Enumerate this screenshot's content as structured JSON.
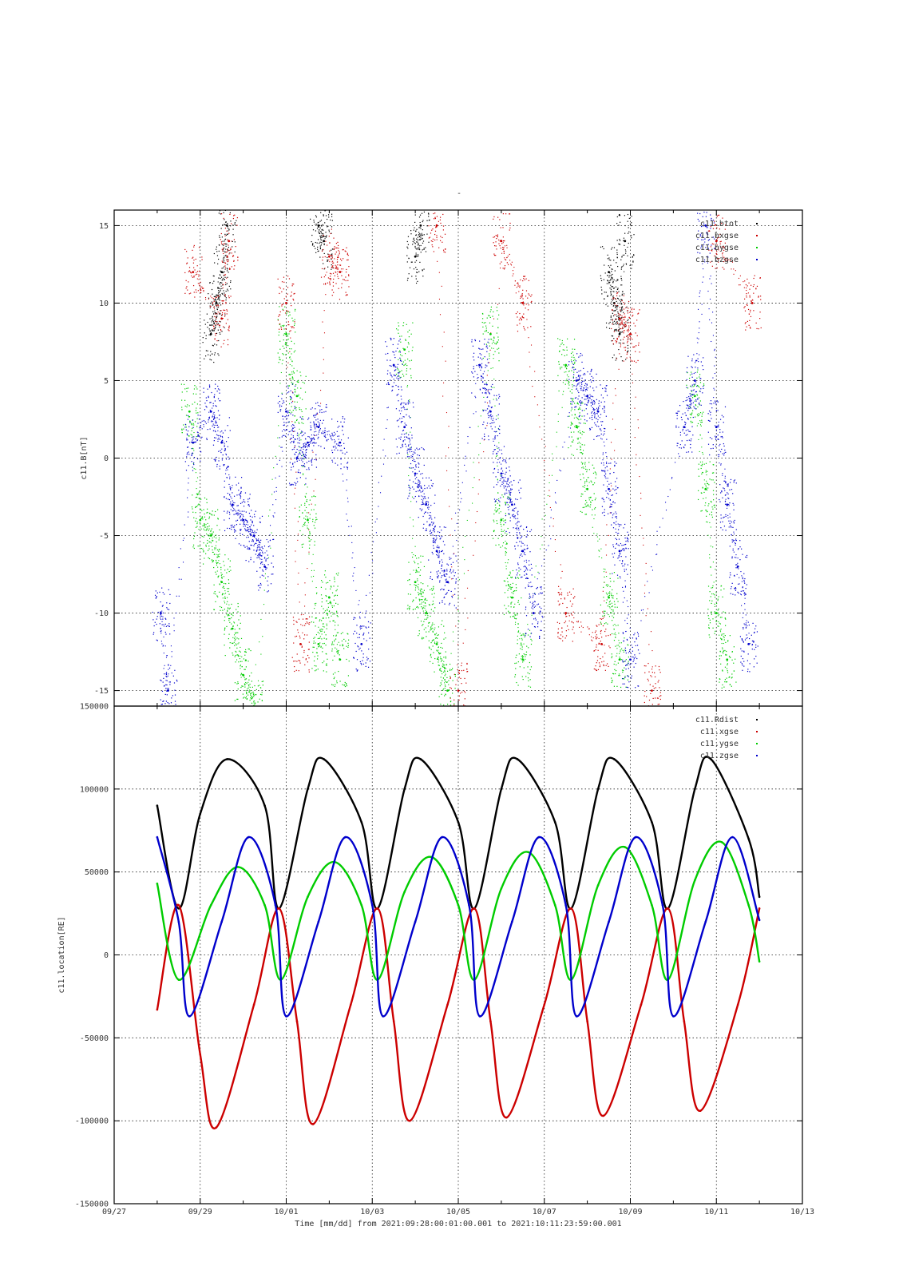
{
  "chart_data": [
    {
      "type": "scatter",
      "title": "-",
      "ylabel": "c11.B[nT]",
      "ylim": [
        -16,
        16
      ],
      "yticks": [
        -15,
        -10,
        -5,
        0,
        5,
        10,
        15
      ],
      "ytick_labels": [
        "-15",
        "-10",
        "-5",
        "0",
        "5",
        "10",
        "15"
      ],
      "legend_position": "top-right",
      "grid": true,
      "series": [
        {
          "name": "c11.btot",
          "color": "#000000",
          "points": [
            [
              "2021-09-29 06:00",
              8
            ],
            [
              "2021-09-29 09:00",
              10
            ],
            [
              "2021-09-29 12:00",
              12
            ],
            [
              "2021-09-29 15:00",
              15
            ],
            [
              "2021-10-01 18:00",
              15
            ],
            [
              "2021-10-01 21:00",
              14
            ],
            [
              "2021-10-04 00:00",
              13
            ],
            [
              "2021-10-04 03:00",
              15
            ],
            [
              "2021-10-08 12:00",
              12
            ],
            [
              "2021-10-08 15:00",
              10
            ],
            [
              "2021-10-08 18:00",
              8
            ],
            [
              "2021-10-08 21:00",
              14
            ]
          ]
        },
        {
          "name": "c11.bxgse",
          "color": "#cc0000",
          "points": [
            [
              "2021-09-28 20:00",
              12
            ],
            [
              "2021-09-29 12:00",
              9
            ],
            [
              "2021-09-29 16:00",
              14
            ],
            [
              "2021-10-01 00:00",
              10
            ],
            [
              "2021-10-01 08:00",
              -12
            ],
            [
              "2021-10-02 00:00",
              13
            ],
            [
              "2021-10-02 06:00",
              12
            ],
            [
              "2021-10-04 12:00",
              15
            ],
            [
              "2021-10-05 00:00",
              -15
            ],
            [
              "2021-10-06 00:00",
              14
            ],
            [
              "2021-10-06 12:00",
              10
            ],
            [
              "2021-10-07 12:00",
              -10
            ],
            [
              "2021-10-08 08:00",
              -12
            ],
            [
              "2021-10-08 18:00",
              9
            ],
            [
              "2021-10-09 00:00",
              8
            ],
            [
              "2021-10-09 12:00",
              -15
            ],
            [
              "2021-10-11 00:00",
              14
            ],
            [
              "2021-10-11 20:00",
              10
            ]
          ]
        },
        {
          "name": "c11.bygse",
          "color": "#00cc00",
          "points": [
            [
              "2021-09-28 18:00",
              3
            ],
            [
              "2021-09-29 00:00",
              -4
            ],
            [
              "2021-09-29 06:00",
              -5
            ],
            [
              "2021-09-29 12:00",
              -8
            ],
            [
              "2021-09-29 18:00",
              -11
            ],
            [
              "2021-09-30 00:00",
              -14
            ],
            [
              "2021-09-30 06:00",
              -16
            ],
            [
              "2021-10-01 00:00",
              8
            ],
            [
              "2021-10-01 06:00",
              4
            ],
            [
              "2021-10-01 12:00",
              -4
            ],
            [
              "2021-10-01 18:00",
              -12
            ],
            [
              "2021-10-02 00:00",
              -9
            ],
            [
              "2021-10-02 06:00",
              -13
            ],
            [
              "2021-10-03 18:00",
              7
            ],
            [
              "2021-10-04 00:00",
              -8
            ],
            [
              "2021-10-04 06:00",
              -10
            ],
            [
              "2021-10-04 12:00",
              -12
            ],
            [
              "2021-10-04 18:00",
              -15
            ],
            [
              "2021-10-05 18:00",
              8
            ],
            [
              "2021-10-06 00:00",
              -4
            ],
            [
              "2021-10-06 06:00",
              -9
            ],
            [
              "2021-10-06 12:00",
              -13
            ],
            [
              "2021-10-07 12:00",
              6
            ],
            [
              "2021-10-07 18:00",
              2
            ],
            [
              "2021-10-08 00:00",
              -2
            ],
            [
              "2021-10-08 12:00",
              -9
            ],
            [
              "2021-10-08 18:00",
              -13
            ],
            [
              "2021-10-10 12:00",
              4
            ],
            [
              "2021-10-10 18:00",
              -2
            ],
            [
              "2021-10-11 00:00",
              -10
            ],
            [
              "2021-10-11 06:00",
              -13
            ]
          ]
        },
        {
          "name": "c11.bzgse",
          "color": "#0000cc",
          "points": [
            [
              "2021-09-28 02:00",
              -10
            ],
            [
              "2021-09-28 06:00",
              -15
            ],
            [
              "2021-09-28 20:00",
              1
            ],
            [
              "2021-09-29 06:00",
              3
            ],
            [
              "2021-09-29 12:00",
              1
            ],
            [
              "2021-09-29 18:00",
              -3
            ],
            [
              "2021-09-30 00:00",
              -4
            ],
            [
              "2021-09-30 06:00",
              -5
            ],
            [
              "2021-09-30 12:00",
              -7
            ],
            [
              "2021-10-01 00:00",
              3
            ],
            [
              "2021-10-01 06:00",
              0
            ],
            [
              "2021-10-01 12:00",
              1
            ],
            [
              "2021-10-01 18:00",
              2
            ],
            [
              "2021-10-02 06:00",
              1
            ],
            [
              "2021-10-02 18:00",
              -12
            ],
            [
              "2021-10-03 12:00",
              6
            ],
            [
              "2021-10-03 18:00",
              2
            ],
            [
              "2021-10-04 00:00",
              -1
            ],
            [
              "2021-10-04 06:00",
              -3
            ],
            [
              "2021-10-04 12:00",
              -6
            ],
            [
              "2021-10-04 18:00",
              -8
            ],
            [
              "2021-10-05 12:00",
              6
            ],
            [
              "2021-10-05 18:00",
              3
            ],
            [
              "2021-10-06 00:00",
              -1
            ],
            [
              "2021-10-06 06:00",
              -3
            ],
            [
              "2021-10-06 12:00",
              -6
            ],
            [
              "2021-10-06 18:00",
              -10
            ],
            [
              "2021-10-07 18:00",
              5
            ],
            [
              "2021-10-08 00:00",
              4
            ],
            [
              "2021-10-08 06:00",
              3
            ],
            [
              "2021-10-08 12:00",
              -2
            ],
            [
              "2021-10-08 18:00",
              -6
            ],
            [
              "2021-10-09 00:00",
              -13
            ],
            [
              "2021-10-10 06:00",
              2
            ],
            [
              "2021-10-10 12:00",
              5
            ],
            [
              "2021-10-10 18:00",
              15
            ],
            [
              "2021-10-11 00:00",
              2
            ],
            [
              "2021-10-11 06:00",
              -3
            ],
            [
              "2021-10-11 12:00",
              -7
            ],
            [
              "2021-10-11 18:00",
              -12
            ]
          ]
        }
      ]
    },
    {
      "type": "line",
      "ylabel": "c11.location[RE]",
      "ylim": [
        -150000,
        150000
      ],
      "yticks": [
        -150000,
        -100000,
        -50000,
        0,
        50000,
        100000,
        150000
      ],
      "ytick_labels": [
        "-150000",
        "-100000",
        "-50000",
        "0",
        "50000",
        "100000",
        "150000"
      ],
      "xlabel": "Time [mm/dd]  from 2021:09:28:00:01:00.001  to  2021:10:11:23:59:00.001",
      "xlim": [
        "2021-09-27",
        "2021-10-13"
      ],
      "xticks": [
        "2021-09-27",
        "2021-09-29",
        "2021-10-01",
        "2021-10-03",
        "2021-10-05",
        "2021-10-07",
        "2021-10-09",
        "2021-10-11",
        "2021-10-13"
      ],
      "xtick_labels": [
        "09/27",
        "09/29",
        "10/01",
        "10/03",
        "10/05",
        "10/07",
        "10/09",
        "10/11",
        "10/13"
      ],
      "legend_position": "top-right",
      "grid": true,
      "series": [
        {
          "name": "c11.Rdist",
          "color": "#000000",
          "points": [
            [
              "2021-09-28 00:00",
              90000
            ],
            [
              "2021-09-28 12:00",
              28000
            ],
            [
              "2021-09-29 00:00",
              85000
            ],
            [
              "2021-09-29 15:00",
              118000
            ],
            [
              "2021-09-30 12:00",
              90000
            ],
            [
              "2021-09-30 20:00",
              28000
            ],
            [
              "2021-10-01 12:00",
              100000
            ],
            [
              "2021-10-01 21:00",
              118000
            ],
            [
              "2021-10-02 18:00",
              80000
            ],
            [
              "2021-10-03 03:00",
              28000
            ],
            [
              "2021-10-03 18:00",
              100000
            ],
            [
              "2021-10-04 03:00",
              118000
            ],
            [
              "2021-10-05 00:00",
              80000
            ],
            [
              "2021-10-05 09:00",
              28000
            ],
            [
              "2021-10-06 00:00",
              100000
            ],
            [
              "2021-10-06 09:00",
              118000
            ],
            [
              "2021-10-07 06:00",
              80000
            ],
            [
              "2021-10-07 15:00",
              28000
            ],
            [
              "2021-10-08 06:00",
              100000
            ],
            [
              "2021-10-08 15:00",
              118000
            ],
            [
              "2021-10-09 12:00",
              80000
            ],
            [
              "2021-10-09 21:00",
              28000
            ],
            [
              "2021-10-10 12:00",
              100000
            ],
            [
              "2021-10-10 21:00",
              118000
            ],
            [
              "2021-10-11 18:00",
              70000
            ],
            [
              "2021-10-12 00:00",
              35000
            ]
          ]
        },
        {
          "name": "c11.xgse",
          "color": "#cc0000",
          "points": [
            [
              "2021-09-28 00:00",
              -33000
            ],
            [
              "2021-09-28 12:00",
              30000
            ],
            [
              "2021-09-29 00:00",
              -60000
            ],
            [
              "2021-09-29 09:00",
              -104000
            ],
            [
              "2021-09-30 06:00",
              -30000
            ],
            [
              "2021-09-30 20:00",
              28000
            ],
            [
              "2021-10-01 06:00",
              -40000
            ],
            [
              "2021-10-01 15:00",
              -102000
            ],
            [
              "2021-10-02 12:00",
              -30000
            ],
            [
              "2021-10-03 03:00",
              28000
            ],
            [
              "2021-10-03 12:00",
              -40000
            ],
            [
              "2021-10-03 21:00",
              -100000
            ],
            [
              "2021-10-04 18:00",
              -30000
            ],
            [
              "2021-10-05 09:00",
              28000
            ],
            [
              "2021-10-05 18:00",
              -40000
            ],
            [
              "2021-10-06 03:00",
              -98000
            ],
            [
              "2021-10-07 00:00",
              -30000
            ],
            [
              "2021-10-07 15:00",
              28000
            ],
            [
              "2021-10-08 00:00",
              -40000
            ],
            [
              "2021-10-08 09:00",
              -97000
            ],
            [
              "2021-10-09 06:00",
              -30000
            ],
            [
              "2021-10-09 21:00",
              28000
            ],
            [
              "2021-10-10 06:00",
              -40000
            ],
            [
              "2021-10-10 15:00",
              -94000
            ],
            [
              "2021-10-11 12:00",
              -30000
            ],
            [
              "2021-10-12 00:00",
              28000
            ]
          ]
        },
        {
          "name": "c11.ygse",
          "color": "#00cc00",
          "points": [
            [
              "2021-09-28 00:00",
              43000
            ],
            [
              "2021-09-28 12:00",
              -15000
            ],
            [
              "2021-09-29 06:00",
              30000
            ],
            [
              "2021-09-29 21:00",
              53000
            ],
            [
              "2021-09-30 12:00",
              30000
            ],
            [
              "2021-09-30 21:00",
              -15000
            ],
            [
              "2021-10-01 12:00",
              35000
            ],
            [
              "2021-10-02 03:00",
              56000
            ],
            [
              "2021-10-02 18:00",
              30000
            ],
            [
              "2021-10-03 03:00",
              -15000
            ],
            [
              "2021-10-03 18:00",
              38000
            ],
            [
              "2021-10-04 09:00",
              59000
            ],
            [
              "2021-10-05 00:00",
              30000
            ],
            [
              "2021-10-05 09:00",
              -15000
            ],
            [
              "2021-10-06 00:00",
              40000
            ],
            [
              "2021-10-06 15:00",
              62000
            ],
            [
              "2021-10-07 06:00",
              30000
            ],
            [
              "2021-10-07 15:00",
              -15000
            ],
            [
              "2021-10-08 06:00",
              42000
            ],
            [
              "2021-10-08 21:00",
              65000
            ],
            [
              "2021-10-09 12:00",
              30000
            ],
            [
              "2021-10-09 21:00",
              -15000
            ],
            [
              "2021-10-10 12:00",
              45000
            ],
            [
              "2021-10-11 03:00",
              68000
            ],
            [
              "2021-10-11 18:00",
              30000
            ],
            [
              "2021-10-12 00:00",
              -4000
            ]
          ]
        },
        {
          "name": "c11.zgse",
          "color": "#0000cc",
          "points": [
            [
              "2021-09-28 00:00",
              71000
            ],
            [
              "2021-09-28 12:00",
              20000
            ],
            [
              "2021-09-28 18:00",
              -37000
            ],
            [
              "2021-09-29 12:00",
              20000
            ],
            [
              "2021-09-30 03:00",
              71000
            ],
            [
              "2021-09-30 18:00",
              30000
            ],
            [
              "2021-10-01 00:00",
              -37000
            ],
            [
              "2021-10-01 18:00",
              20000
            ],
            [
              "2021-10-02 09:00",
              71000
            ],
            [
              "2021-10-03 00:00",
              30000
            ],
            [
              "2021-10-03 06:00",
              -37000
            ],
            [
              "2021-10-04 00:00",
              20000
            ],
            [
              "2021-10-04 15:00",
              71000
            ],
            [
              "2021-10-05 06:00",
              30000
            ],
            [
              "2021-10-05 12:00",
              -37000
            ],
            [
              "2021-10-06 06:00",
              20000
            ],
            [
              "2021-10-06 21:00",
              71000
            ],
            [
              "2021-10-07 12:00",
              30000
            ],
            [
              "2021-10-07 18:00",
              -37000
            ],
            [
              "2021-10-08 12:00",
              20000
            ],
            [
              "2021-10-09 03:00",
              71000
            ],
            [
              "2021-10-09 18:00",
              30000
            ],
            [
              "2021-10-10 00:00",
              -37000
            ],
            [
              "2021-10-10 18:00",
              20000
            ],
            [
              "2021-10-11 09:00",
              71000
            ],
            [
              "2021-10-12 00:00",
              21000
            ]
          ]
        }
      ]
    }
  ]
}
